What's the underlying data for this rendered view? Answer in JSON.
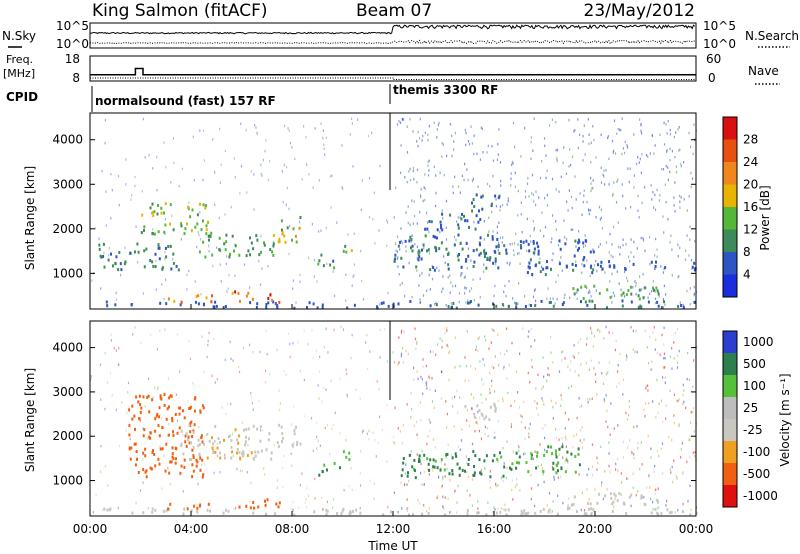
{
  "header": {
    "station": "King Salmon (fitACF)",
    "beam": "Beam 07",
    "date": "23/May/2012"
  },
  "noise_panel": {
    "left_label": "N.Sky",
    "right_label": "N.Search",
    "left_ticks": [
      "10^5",
      "10^0"
    ],
    "right_ticks": [
      "10^5",
      "10^0"
    ]
  },
  "freq_panel": {
    "left_label_1": "Freq.",
    "left_label_2": "[MHz]",
    "left_ticks": [
      "18",
      "8"
    ],
    "right_label": "Nave",
    "right_ticks": [
      "60",
      "0"
    ]
  },
  "cpid_panel": {
    "label": "CPID",
    "segment_1": "normalsound (fast) 157 RF",
    "segment_2": "themis 3300 RF"
  },
  "x_axis": {
    "label": "Time UT",
    "ticks": [
      "00:00",
      "04:00",
      "08:00",
      "12:00",
      "16:00",
      "20:00",
      "00:00"
    ]
  },
  "power_panel": {
    "ylabel": "Slant Range [km]",
    "yticks": [
      "1000",
      "2000",
      "3000",
      "4000"
    ],
    "colorbar_label": "Power [dB]",
    "colorbar_ticks": [
      "4",
      "8",
      "12",
      "16",
      "20",
      "24",
      "28"
    ],
    "colors": [
      "#1a2ee0",
      "#2d55c4",
      "#3f8a5a",
      "#55b73a",
      "#e8b400",
      "#f0861c",
      "#e85010",
      "#d81010"
    ]
  },
  "velocity_panel": {
    "ylabel": "Slant Range [km]",
    "yticks": [
      "1000",
      "2000",
      "3000",
      "4000"
    ],
    "colorbar_label": "Velocity [m s⁻¹]",
    "colorbar_ticks": [
      "1000",
      "500",
      "100",
      "25",
      "-25",
      "-100",
      "-500",
      "-1000"
    ],
    "colors": [
      "#2a3fcf",
      "#2e7f4e",
      "#55c03a",
      "#bdbdbd",
      "#c8c8c0",
      "#f0a020",
      "#f06010",
      "#e01010"
    ]
  },
  "chart_data": [
    {
      "type": "line",
      "name": "noise",
      "x_unit": "hours UT",
      "xlim": [
        0,
        24
      ],
      "series": [
        {
          "name": "N.Sky",
          "x": [
            0,
            4,
            8,
            12,
            16,
            20,
            24
          ],
          "values": [
            1000,
            1000,
            1000,
            10000,
            10000,
            10000,
            10000
          ]
        },
        {
          "name": "N.Search",
          "x": [
            0,
            4,
            8,
            12,
            16,
            20,
            24
          ],
          "values": [
            1,
            1,
            1,
            1,
            1,
            1,
            1
          ]
        }
      ]
    },
    {
      "type": "line",
      "name": "frequency",
      "x_unit": "hours UT",
      "xlim": [
        0,
        24
      ],
      "ylim": [
        8,
        18
      ],
      "series": [
        {
          "name": "Freq.",
          "x": [
            0,
            1.8,
            1.8,
            2.1,
            2.1,
            24
          ],
          "values": [
            10.5,
            10.5,
            13,
            13,
            10.5,
            10.5
          ]
        },
        {
          "name": "Nave",
          "x": [
            0,
            12,
            12,
            24
          ],
          "values": [
            2,
            2,
            1,
            1
          ]
        }
      ]
    },
    {
      "type": "heatmap",
      "name": "power",
      "x_unit": "hours UT",
      "xlim": [
        0,
        24
      ],
      "ylim": [
        200,
        4600
      ],
      "value_unit": "dB",
      "vlim": [
        0,
        32
      ],
      "regions": [
        {
          "t": [
            0.3,
            12.0
          ],
          "r": [
            250,
            400
          ],
          "value": 6
        },
        {
          "t": [
            3.0,
            4.8
          ],
          "r": [
            380,
            550
          ],
          "value": 24
        },
        {
          "t": [
            5.6,
            7.6
          ],
          "r": [
            380,
            620
          ],
          "value": 24
        },
        {
          "t": [
            0.3,
            3.5
          ],
          "r": [
            1100,
            1700
          ],
          "value": 9
        },
        {
          "t": [
            2.0,
            4.8
          ],
          "r": [
            1900,
            2600
          ],
          "value": 14
        },
        {
          "t": [
            4.3,
            7.3
          ],
          "r": [
            1400,
            1900
          ],
          "value": 12
        },
        {
          "t": [
            7.2,
            8.3
          ],
          "r": [
            1700,
            2300
          ],
          "value": 16
        },
        {
          "t": [
            9.0,
            9.9
          ],
          "r": [
            1150,
            1450
          ],
          "value": 10
        },
        {
          "t": [
            10.0,
            10.6
          ],
          "r": [
            1500,
            1750
          ],
          "value": 14
        },
        {
          "t": [
            12.0,
            16.5
          ],
          "r": [
            1100,
            1900
          ],
          "value": 8
        },
        {
          "t": [
            14.8,
            16.2
          ],
          "r": [
            2400,
            2800
          ],
          "value": 8
        },
        {
          "t": [
            13.2,
            15.5
          ],
          "r": [
            2000,
            2400
          ],
          "value": 7
        },
        {
          "t": [
            17.0,
            20.0
          ],
          "r": [
            1000,
            1800
          ],
          "value": 7
        },
        {
          "t": [
            19.0,
            22.5
          ],
          "r": [
            450,
            750
          ],
          "value": 12
        },
        {
          "t": [
            20.0,
            24.0
          ],
          "r": [
            1100,
            1300
          ],
          "value": 6
        },
        {
          "t": [
            12.0,
            24.0
          ],
          "r": [
            250,
            420
          ],
          "value": 8
        }
      ]
    },
    {
      "type": "heatmap",
      "name": "velocity",
      "x_unit": "hours UT",
      "xlim": [
        0,
        24
      ],
      "ylim": [
        200,
        4600
      ],
      "value_unit": "m s⁻¹",
      "regions": [
        {
          "t": [
            0.3,
            12.0
          ],
          "r": [
            250,
            400
          ],
          "value": -20
        },
        {
          "t": [
            3.0,
            4.8
          ],
          "r": [
            380,
            550
          ],
          "value": -500
        },
        {
          "t": [
            5.6,
            7.6
          ],
          "r": [
            380,
            620
          ],
          "value": -500
        },
        {
          "t": [
            1.5,
            4.5
          ],
          "r": [
            1100,
            3000
          ],
          "value": -500
        },
        {
          "t": [
            3.5,
            7.3
          ],
          "r": [
            1500,
            2300
          ],
          "value": -50
        },
        {
          "t": [
            7.2,
            8.3
          ],
          "r": [
            1800,
            2300
          ],
          "value": -20
        },
        {
          "t": [
            9.0,
            9.9
          ],
          "r": [
            1150,
            1450
          ],
          "value": 300
        },
        {
          "t": [
            10.0,
            10.6
          ],
          "r": [
            1500,
            1750
          ],
          "value": 200
        },
        {
          "t": [
            12.3,
            16.5
          ],
          "r": [
            1100,
            1700
          ],
          "value": 400
        },
        {
          "t": [
            14.8,
            16.2
          ],
          "r": [
            2400,
            2800
          ],
          "value": -20
        },
        {
          "t": [
            16.5,
            19.5
          ],
          "r": [
            1200,
            1800
          ],
          "value": 300
        },
        {
          "t": [
            19.0,
            22.5
          ],
          "r": [
            450,
            750
          ],
          "value": -20
        },
        {
          "t": [
            12.0,
            24.0
          ],
          "r": [
            250,
            420
          ],
          "value": -20
        }
      ]
    }
  ]
}
